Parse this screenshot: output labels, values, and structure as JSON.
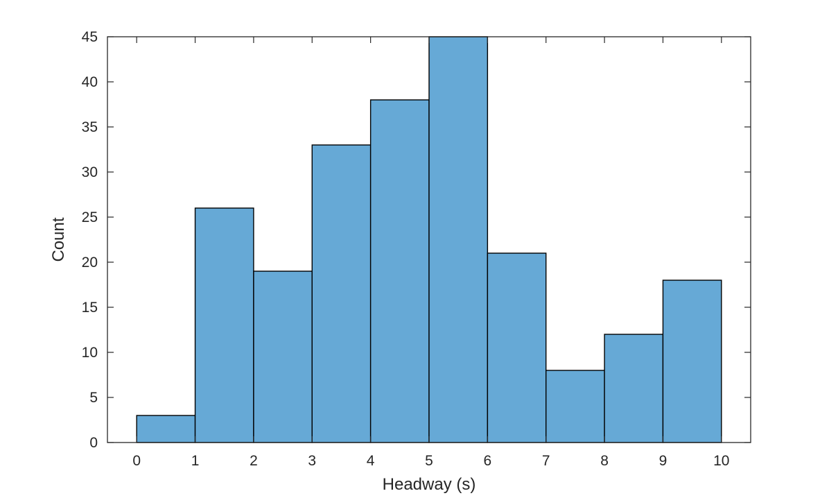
{
  "chart_data": {
    "type": "bar",
    "subtype": "histogram",
    "bin_edges": [
      0,
      1,
      2,
      3,
      4,
      5,
      6,
      7,
      8,
      9,
      10
    ],
    "values": [
      3,
      26,
      19,
      33,
      38,
      45,
      21,
      8,
      12,
      18
    ],
    "xlabel": "Headway (s)",
    "ylabel": "Count",
    "xlim": [
      -0.5,
      10.5
    ],
    "ylim": [
      0,
      45
    ],
    "xticks": [
      0,
      1,
      2,
      3,
      4,
      5,
      6,
      7,
      8,
      9,
      10
    ],
    "yticks": [
      0,
      5,
      10,
      15,
      20,
      25,
      30,
      35,
      40,
      45
    ],
    "grid": false,
    "box": true,
    "colors": {
      "bar_fill": "#66a9d6",
      "bar_edge": "#000000",
      "axis": "#262626"
    }
  }
}
